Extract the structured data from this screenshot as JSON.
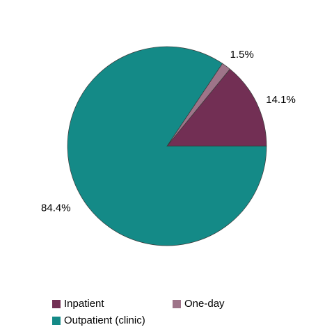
{
  "chart_data": {
    "type": "pie",
    "categories": [
      "Inpatient",
      "One-day",
      "Outpatient (clinic)"
    ],
    "values": [
      14.1,
      1.5,
      84.4
    ],
    "value_labels": [
      "14.1%",
      "1.5%",
      "84.4%"
    ],
    "colors": [
      "#722f54",
      "#9e7489",
      "#148a87"
    ],
    "legend": "bottom"
  }
}
